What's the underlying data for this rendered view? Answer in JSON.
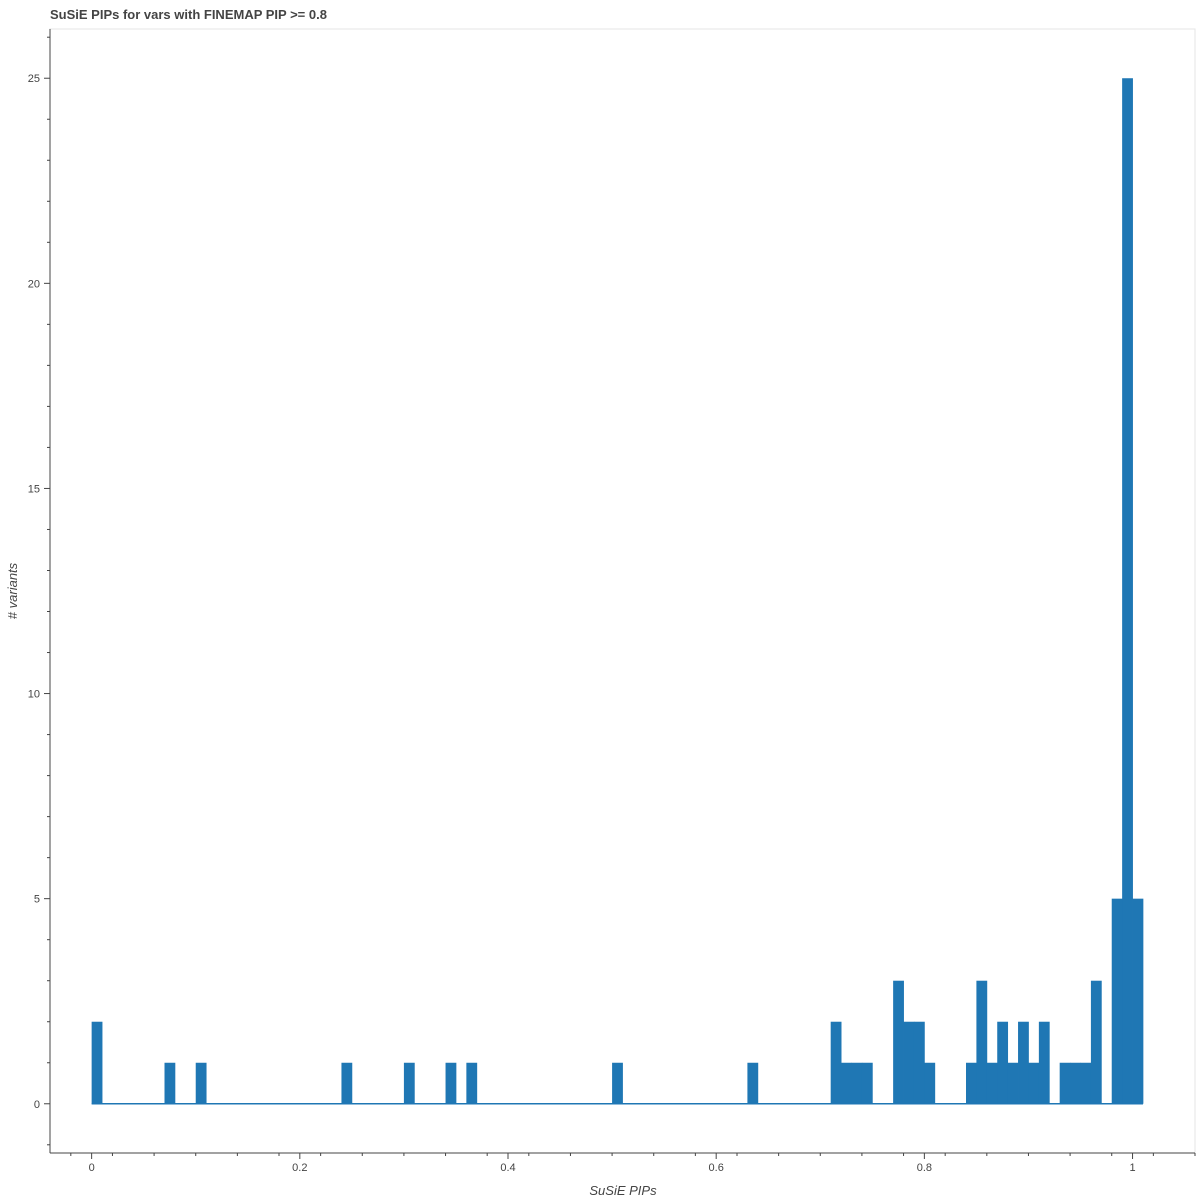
{
  "chart_data": {
    "type": "bar",
    "title": "SuSiE PIPs for vars with FINEMAP  PIP >= 0.8",
    "xlabel": "SuSiE PIPs",
    "ylabel": "# variants",
    "xlim": [
      -0.04,
      1.06
    ],
    "ylim": [
      -1.2,
      26.2
    ],
    "xticks": [
      0,
      0.2,
      0.4,
      0.6,
      0.8,
      1
    ],
    "xtick_labels": [
      "0",
      "0.2",
      "0.4",
      "0.6",
      "0.8",
      "1"
    ],
    "yticks": [
      0,
      5,
      10,
      15,
      20,
      25
    ],
    "ytick_labels": [
      "0",
      "5",
      "10",
      "15",
      "20",
      "25"
    ],
    "bin_width": 0.01,
    "bins": [
      {
        "x": 0.005,
        "count": 2
      },
      {
        "x": 0.075,
        "count": 1
      },
      {
        "x": 0.105,
        "count": 1
      },
      {
        "x": 0.245,
        "count": 1
      },
      {
        "x": 0.305,
        "count": 1
      },
      {
        "x": 0.345,
        "count": 1
      },
      {
        "x": 0.365,
        "count": 1
      },
      {
        "x": 0.505,
        "count": 1
      },
      {
        "x": 0.635,
        "count": 1
      },
      {
        "x": 0.715,
        "count": 2
      },
      {
        "x": 0.725,
        "count": 1
      },
      {
        "x": 0.735,
        "count": 1
      },
      {
        "x": 0.745,
        "count": 1
      },
      {
        "x": 0.775,
        "count": 3
      },
      {
        "x": 0.785,
        "count": 2
      },
      {
        "x": 0.795,
        "count": 2
      },
      {
        "x": 0.805,
        "count": 1
      },
      {
        "x": 0.845,
        "count": 1
      },
      {
        "x": 0.855,
        "count": 3
      },
      {
        "x": 0.865,
        "count": 1
      },
      {
        "x": 0.875,
        "count": 2
      },
      {
        "x": 0.885,
        "count": 1
      },
      {
        "x": 0.895,
        "count": 2
      },
      {
        "x": 0.905,
        "count": 1
      },
      {
        "x": 0.915,
        "count": 2
      },
      {
        "x": 0.935,
        "count": 1
      },
      {
        "x": 0.945,
        "count": 1
      },
      {
        "x": 0.955,
        "count": 1
      },
      {
        "x": 0.965,
        "count": 3
      },
      {
        "x": 0.985,
        "count": 5
      },
      {
        "x": 0.995,
        "count": 25
      },
      {
        "x": 1.005,
        "count": 5
      }
    ],
    "baseline_range": [
      0,
      1.01
    ],
    "bar_color": "#1f77b4",
    "grid": false
  }
}
